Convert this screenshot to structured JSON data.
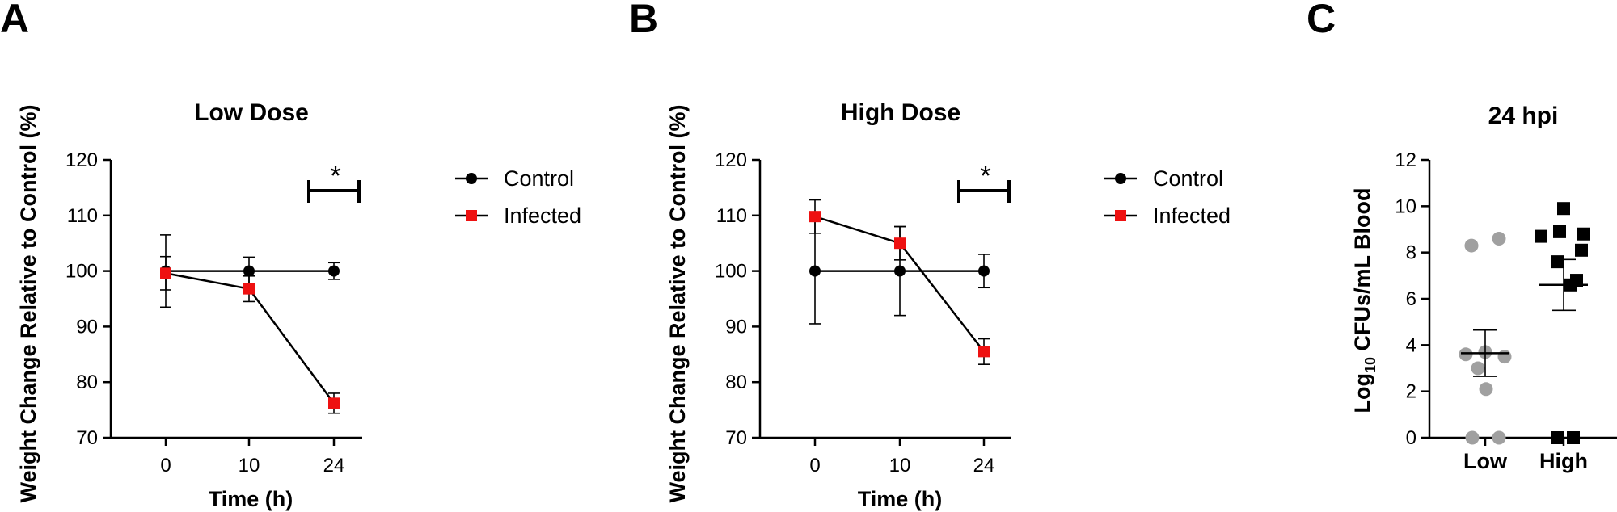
{
  "panel_letters": [
    "A",
    "B",
    "C"
  ],
  "chart_data": [
    {
      "type": "line",
      "title": "Low Dose",
      "xlabel": "Time (h)",
      "ylabel": "Weight Change Relative to Control (%)",
      "categories": [
        "0",
        "10",
        "24"
      ],
      "ylim": [
        70,
        120
      ],
      "yticks": [
        70,
        80,
        90,
        100,
        110,
        120
      ],
      "legend_position": "right",
      "series": [
        {
          "name": "Control",
          "color": "#000000",
          "marker": "circle",
          "values": [
            100,
            100,
            100
          ],
          "error": [
            6.5,
            2.5,
            1.5
          ]
        },
        {
          "name": "Infected",
          "color": "#ee1111",
          "marker": "square",
          "values": [
            99.6,
            96.8,
            76.2
          ],
          "error": [
            3.0,
            2.3,
            1.8
          ]
        }
      ],
      "annotations": [
        {
          "text": "*",
          "at_category": "24"
        }
      ]
    },
    {
      "type": "line",
      "title": "High Dose",
      "xlabel": "Time (h)",
      "ylabel": "Weight Change Relative to Control (%)",
      "categories": [
        "0",
        "10",
        "24"
      ],
      "ylim": [
        70,
        120
      ],
      "yticks": [
        70,
        80,
        90,
        100,
        110,
        120
      ],
      "legend_position": "right",
      "series": [
        {
          "name": "Control",
          "color": "#000000",
          "marker": "circle",
          "values": [
            100,
            100,
            100
          ],
          "error": [
            9.5,
            8.0,
            3.0
          ]
        },
        {
          "name": "Infected",
          "color": "#ee1111",
          "marker": "square",
          "values": [
            109.8,
            105.0,
            85.5
          ],
          "error": [
            3.0,
            3.0,
            2.3
          ]
        }
      ],
      "annotations": [
        {
          "text": "*",
          "at_category": "24"
        }
      ]
    },
    {
      "type": "scatter",
      "title": "24 hpi",
      "ylabel_parts": [
        "Log",
        "10",
        " CFUs/mL Blood"
      ],
      "categories": [
        "Low",
        "High"
      ],
      "ylim": [
        0,
        12
      ],
      "yticks": [
        0,
        2,
        4,
        6,
        8,
        10,
        12
      ],
      "groups": [
        {
          "name": "Low",
          "color": "#a0a0a0",
          "marker": "circle",
          "points": [
            8.3,
            8.6,
            3.6,
            3.7,
            3.5,
            3.0,
            2.1,
            0,
            0
          ],
          "mean": 3.65,
          "sem": 1.0
        },
        {
          "name": "High",
          "color": "#000000",
          "marker": "square",
          "points": [
            9.9,
            8.7,
            8.9,
            8.8,
            8.1,
            7.6,
            6.8,
            6.6,
            0,
            0
          ],
          "mean": 6.6,
          "sem": 1.1
        }
      ]
    }
  ]
}
